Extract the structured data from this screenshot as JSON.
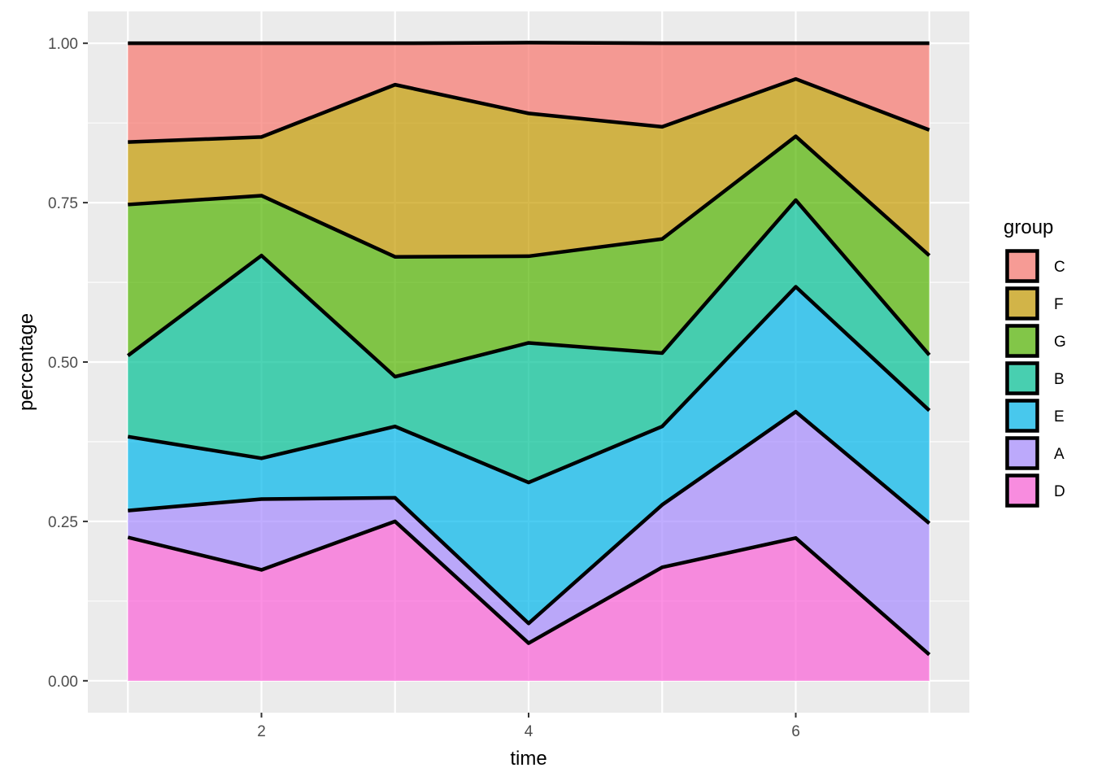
{
  "chart_data": {
    "type": "area",
    "stacking": "fill",
    "xlabel": "time",
    "ylabel": "percentage",
    "xlim": [
      0.7,
      7.3
    ],
    "ylim": [
      -0.05,
      1.05
    ],
    "x": [
      1,
      2,
      3,
      4,
      5,
      6,
      7
    ],
    "x_ticks": [
      2,
      4,
      6
    ],
    "x_tick_labels": [
      "2",
      "4",
      "6"
    ],
    "y_ticks": [
      0,
      0.25,
      0.5,
      0.75,
      1.0
    ],
    "y_tick_labels": [
      "0.00",
      "0.25",
      "0.50",
      "0.75",
      "1.00"
    ],
    "grid": true,
    "legend_title": "group",
    "legend_position": "right",
    "series": [
      {
        "name": "C",
        "color": "#F8766D",
        "values": [
          0.155,
          0.147,
          0.065,
          0.111,
          0.131,
          0.056,
          0.136
        ]
      },
      {
        "name": "F",
        "color": "#C49A00",
        "values": [
          0.098,
          0.092,
          0.27,
          0.224,
          0.176,
          0.09,
          0.197
        ]
      },
      {
        "name": "G",
        "color": "#53B400",
        "values": [
          0.237,
          0.094,
          0.188,
          0.136,
          0.179,
          0.1,
          0.156
        ]
      },
      {
        "name": "B",
        "color": "#00C094",
        "values": [
          0.127,
          0.318,
          0.078,
          0.219,
          0.115,
          0.136,
          0.087
        ]
      },
      {
        "name": "E",
        "color": "#00B6EB",
        "values": [
          0.116,
          0.064,
          0.112,
          0.221,
          0.123,
          0.196,
          0.177
        ]
      },
      {
        "name": "A",
        "color": "#A58AFF",
        "values": [
          0.042,
          0.111,
          0.037,
          0.031,
          0.098,
          0.198,
          0.206
        ]
      },
      {
        "name": "D",
        "color": "#FB61D7",
        "values": [
          0.225,
          0.174,
          0.25,
          0.059,
          0.178,
          0.224,
          0.041
        ]
      }
    ]
  }
}
